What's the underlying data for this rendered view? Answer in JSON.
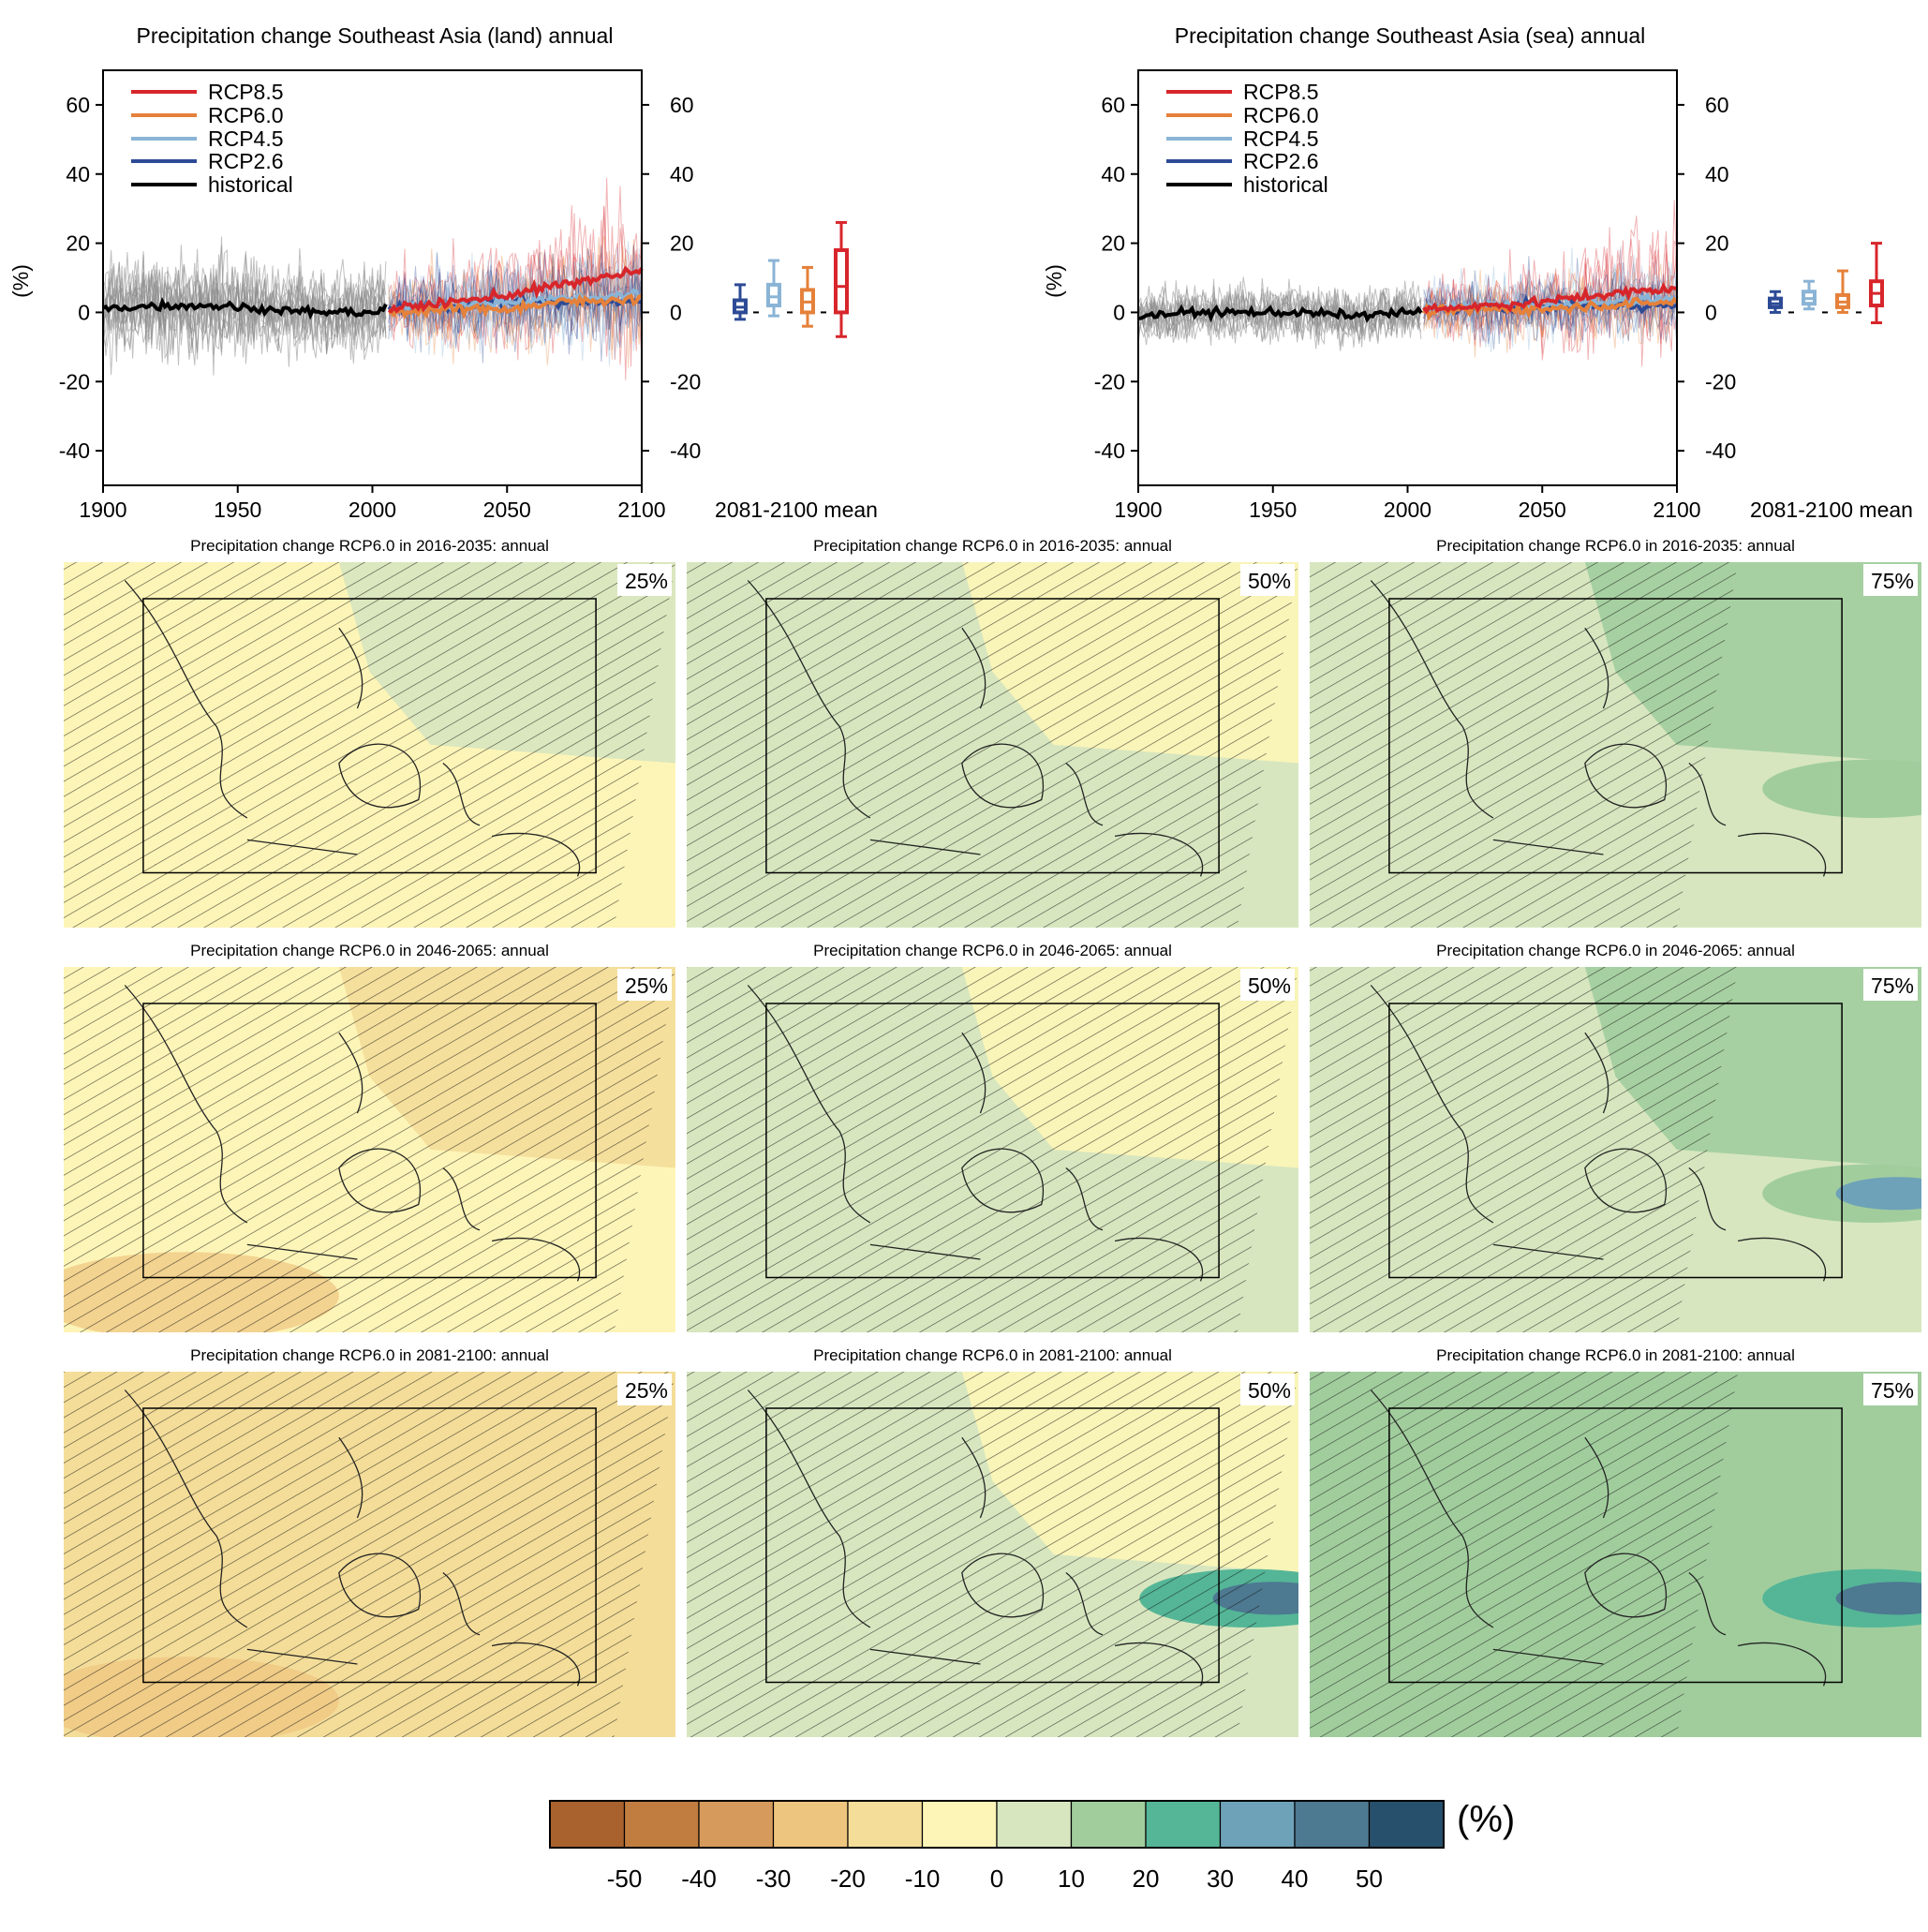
{
  "colors": {
    "rcp85": "#d7262b",
    "rcp60": "#e5813a",
    "rcp45": "#8ab4d6",
    "rcp26": "#2d4a96",
    "historical": "#000000",
    "model_spread": "#8c8c8c"
  },
  "timeseries_panels": [
    {
      "title": "Precipitation change Southeast Asia (land) annual",
      "ylabel": "(%)",
      "box_label": "2081-2100 mean"
    },
    {
      "title": "Precipitation change Southeast Asia (sea) annual",
      "ylabel": "(%)",
      "box_label": "2081-2100 mean"
    }
  ],
  "legend": [
    "RCP8.5",
    "RCP6.0",
    "RCP4.5",
    "RCP2.6",
    "historical"
  ],
  "map_panels": [
    {
      "title": "Precipitation change RCP6.0 in 2016-2035: annual",
      "percentile": "25%"
    },
    {
      "title": "Precipitation change RCP6.0 in 2016-2035: annual",
      "percentile": "50%"
    },
    {
      "title": "Precipitation change RCP6.0 in 2016-2035: annual",
      "percentile": "75%"
    },
    {
      "title": "Precipitation change RCP6.0 in 2046-2065: annual",
      "percentile": "25%"
    },
    {
      "title": "Precipitation change RCP6.0 in 2046-2065: annual",
      "percentile": "50%"
    },
    {
      "title": "Precipitation change RCP6.0 in 2046-2065: annual",
      "percentile": "75%"
    },
    {
      "title": "Precipitation change RCP6.0 in 2081-2100: annual",
      "percentile": "25%"
    },
    {
      "title": "Precipitation change RCP6.0 in 2081-2100: annual",
      "percentile": "50%"
    },
    {
      "title": "Precipitation change RCP6.0 in 2081-2100: annual",
      "percentile": "75%"
    }
  ],
  "colorbar": {
    "unit": "(%)",
    "ticks": [
      "-50",
      "-40",
      "-30",
      "-20",
      "-10",
      "0",
      "10",
      "20",
      "30",
      "40",
      "50"
    ],
    "colors": [
      "#a9612d",
      "#c17d40",
      "#d69a5c",
      "#eec57f",
      "#f4dd99",
      "#fdf5b7",
      "#d7e6bf",
      "#a1cd9d",
      "#54b697",
      "#6ea2b8",
      "#4d7991",
      "#27506c"
    ]
  },
  "chart_data": [
    {
      "type": "line",
      "title": "Precipitation change Southeast Asia (land) annual",
      "xlabel": "",
      "ylabel": "(%)",
      "xlim": [
        1900,
        2100
      ],
      "ylim": [
        -50,
        70
      ],
      "x_ticks": [
        1900,
        1950,
        2000,
        2050,
        2100
      ],
      "y_ticks": [
        -40,
        -20,
        0,
        20,
        40,
        60
      ],
      "grid": false,
      "legend_position": "top-left",
      "series": [
        {
          "name": "historical",
          "x": [
            1900,
            1920,
            1940,
            1960,
            1980,
            2000,
            2005
          ],
          "values": [
            1,
            2,
            2,
            1,
            0,
            0,
            1
          ]
        },
        {
          "name": "RCP2.6",
          "x": [
            2006,
            2030,
            2050,
            2070,
            2100
          ],
          "values": [
            1,
            2,
            3,
            3,
            3
          ]
        },
        {
          "name": "RCP4.5",
          "x": [
            2006,
            2030,
            2050,
            2070,
            2100
          ],
          "values": [
            1,
            2,
            3,
            4,
            5
          ]
        },
        {
          "name": "RCP6.0",
          "x": [
            2006,
            2030,
            2050,
            2070,
            2100
          ],
          "values": [
            0,
            1,
            1,
            3,
            4
          ]
        },
        {
          "name": "RCP8.5",
          "x": [
            2006,
            2030,
            2050,
            2070,
            2100
          ],
          "values": [
            1,
            3,
            5,
            8,
            12
          ]
        }
      ],
      "boxes_2081_2100_mean": [
        {
          "name": "RCP2.6",
          "min": -2,
          "q1": 0,
          "median": 1.5,
          "q3": 3.5,
          "max": 8
        },
        {
          "name": "RCP4.5",
          "min": -1,
          "q1": 2,
          "median": 4.5,
          "q3": 8,
          "max": 15
        },
        {
          "name": "RCP6.0",
          "min": -4,
          "q1": 0,
          "median": 3,
          "q3": 6.5,
          "max": 13
        },
        {
          "name": "RCP8.5",
          "min": -7,
          "q1": 0,
          "median": 7.5,
          "q3": 18,
          "max": 26
        }
      ]
    },
    {
      "type": "line",
      "title": "Precipitation change Southeast Asia (sea) annual",
      "xlabel": "",
      "ylabel": "(%)",
      "xlim": [
        1900,
        2100
      ],
      "ylim": [
        -50,
        70
      ],
      "x_ticks": [
        1900,
        1950,
        2000,
        2050,
        2100
      ],
      "y_ticks": [
        -40,
        -20,
        0,
        20,
        40,
        60
      ],
      "grid": false,
      "legend_position": "top-left",
      "series": [
        {
          "name": "historical",
          "x": [
            1900,
            1920,
            1940,
            1960,
            1980,
            2000,
            2005
          ],
          "values": [
            -1,
            0,
            0,
            0,
            -1,
            0,
            0
          ]
        },
        {
          "name": "RCP2.6",
          "x": [
            2006,
            2030,
            2050,
            2070,
            2100
          ],
          "values": [
            1,
            1,
            2,
            2,
            2
          ]
        },
        {
          "name": "RCP4.5",
          "x": [
            2006,
            2030,
            2050,
            2070,
            2100
          ],
          "values": [
            1,
            2,
            2,
            3,
            4
          ]
        },
        {
          "name": "RCP6.0",
          "x": [
            2006,
            2030,
            2050,
            2070,
            2100
          ],
          "values": [
            0,
            1,
            1,
            2,
            3
          ]
        },
        {
          "name": "RCP8.5",
          "x": [
            2006,
            2030,
            2050,
            2070,
            2100
          ],
          "values": [
            1,
            2,
            3,
            5,
            7
          ]
        }
      ],
      "boxes_2081_2100_mean": [
        {
          "name": "RCP2.6",
          "min": 0,
          "q1": 1.5,
          "median": 2.5,
          "q3": 4,
          "max": 6
        },
        {
          "name": "RCP4.5",
          "min": 1,
          "q1": 2.5,
          "median": 4,
          "q3": 6,
          "max": 9
        },
        {
          "name": "RCP6.0",
          "min": 0,
          "q1": 1.5,
          "median": 3,
          "q3": 5,
          "max": 12
        },
        {
          "name": "RCP8.5",
          "min": -3,
          "q1": 2,
          "median": 5.5,
          "q3": 9,
          "max": 20
        }
      ]
    },
    {
      "type": "heatmap",
      "panels": "3x3 grid of RCP6.0 annual precipitation change maps (rows: 2016-2035, 2046-2065, 2081-2100; columns: 25%, 50%, 75% percentiles)",
      "colorbar_levels": [
        -50,
        -40,
        -30,
        -20,
        -10,
        0,
        10,
        20,
        30,
        40,
        50
      ],
      "colorbar_unit": "(%)"
    }
  ]
}
